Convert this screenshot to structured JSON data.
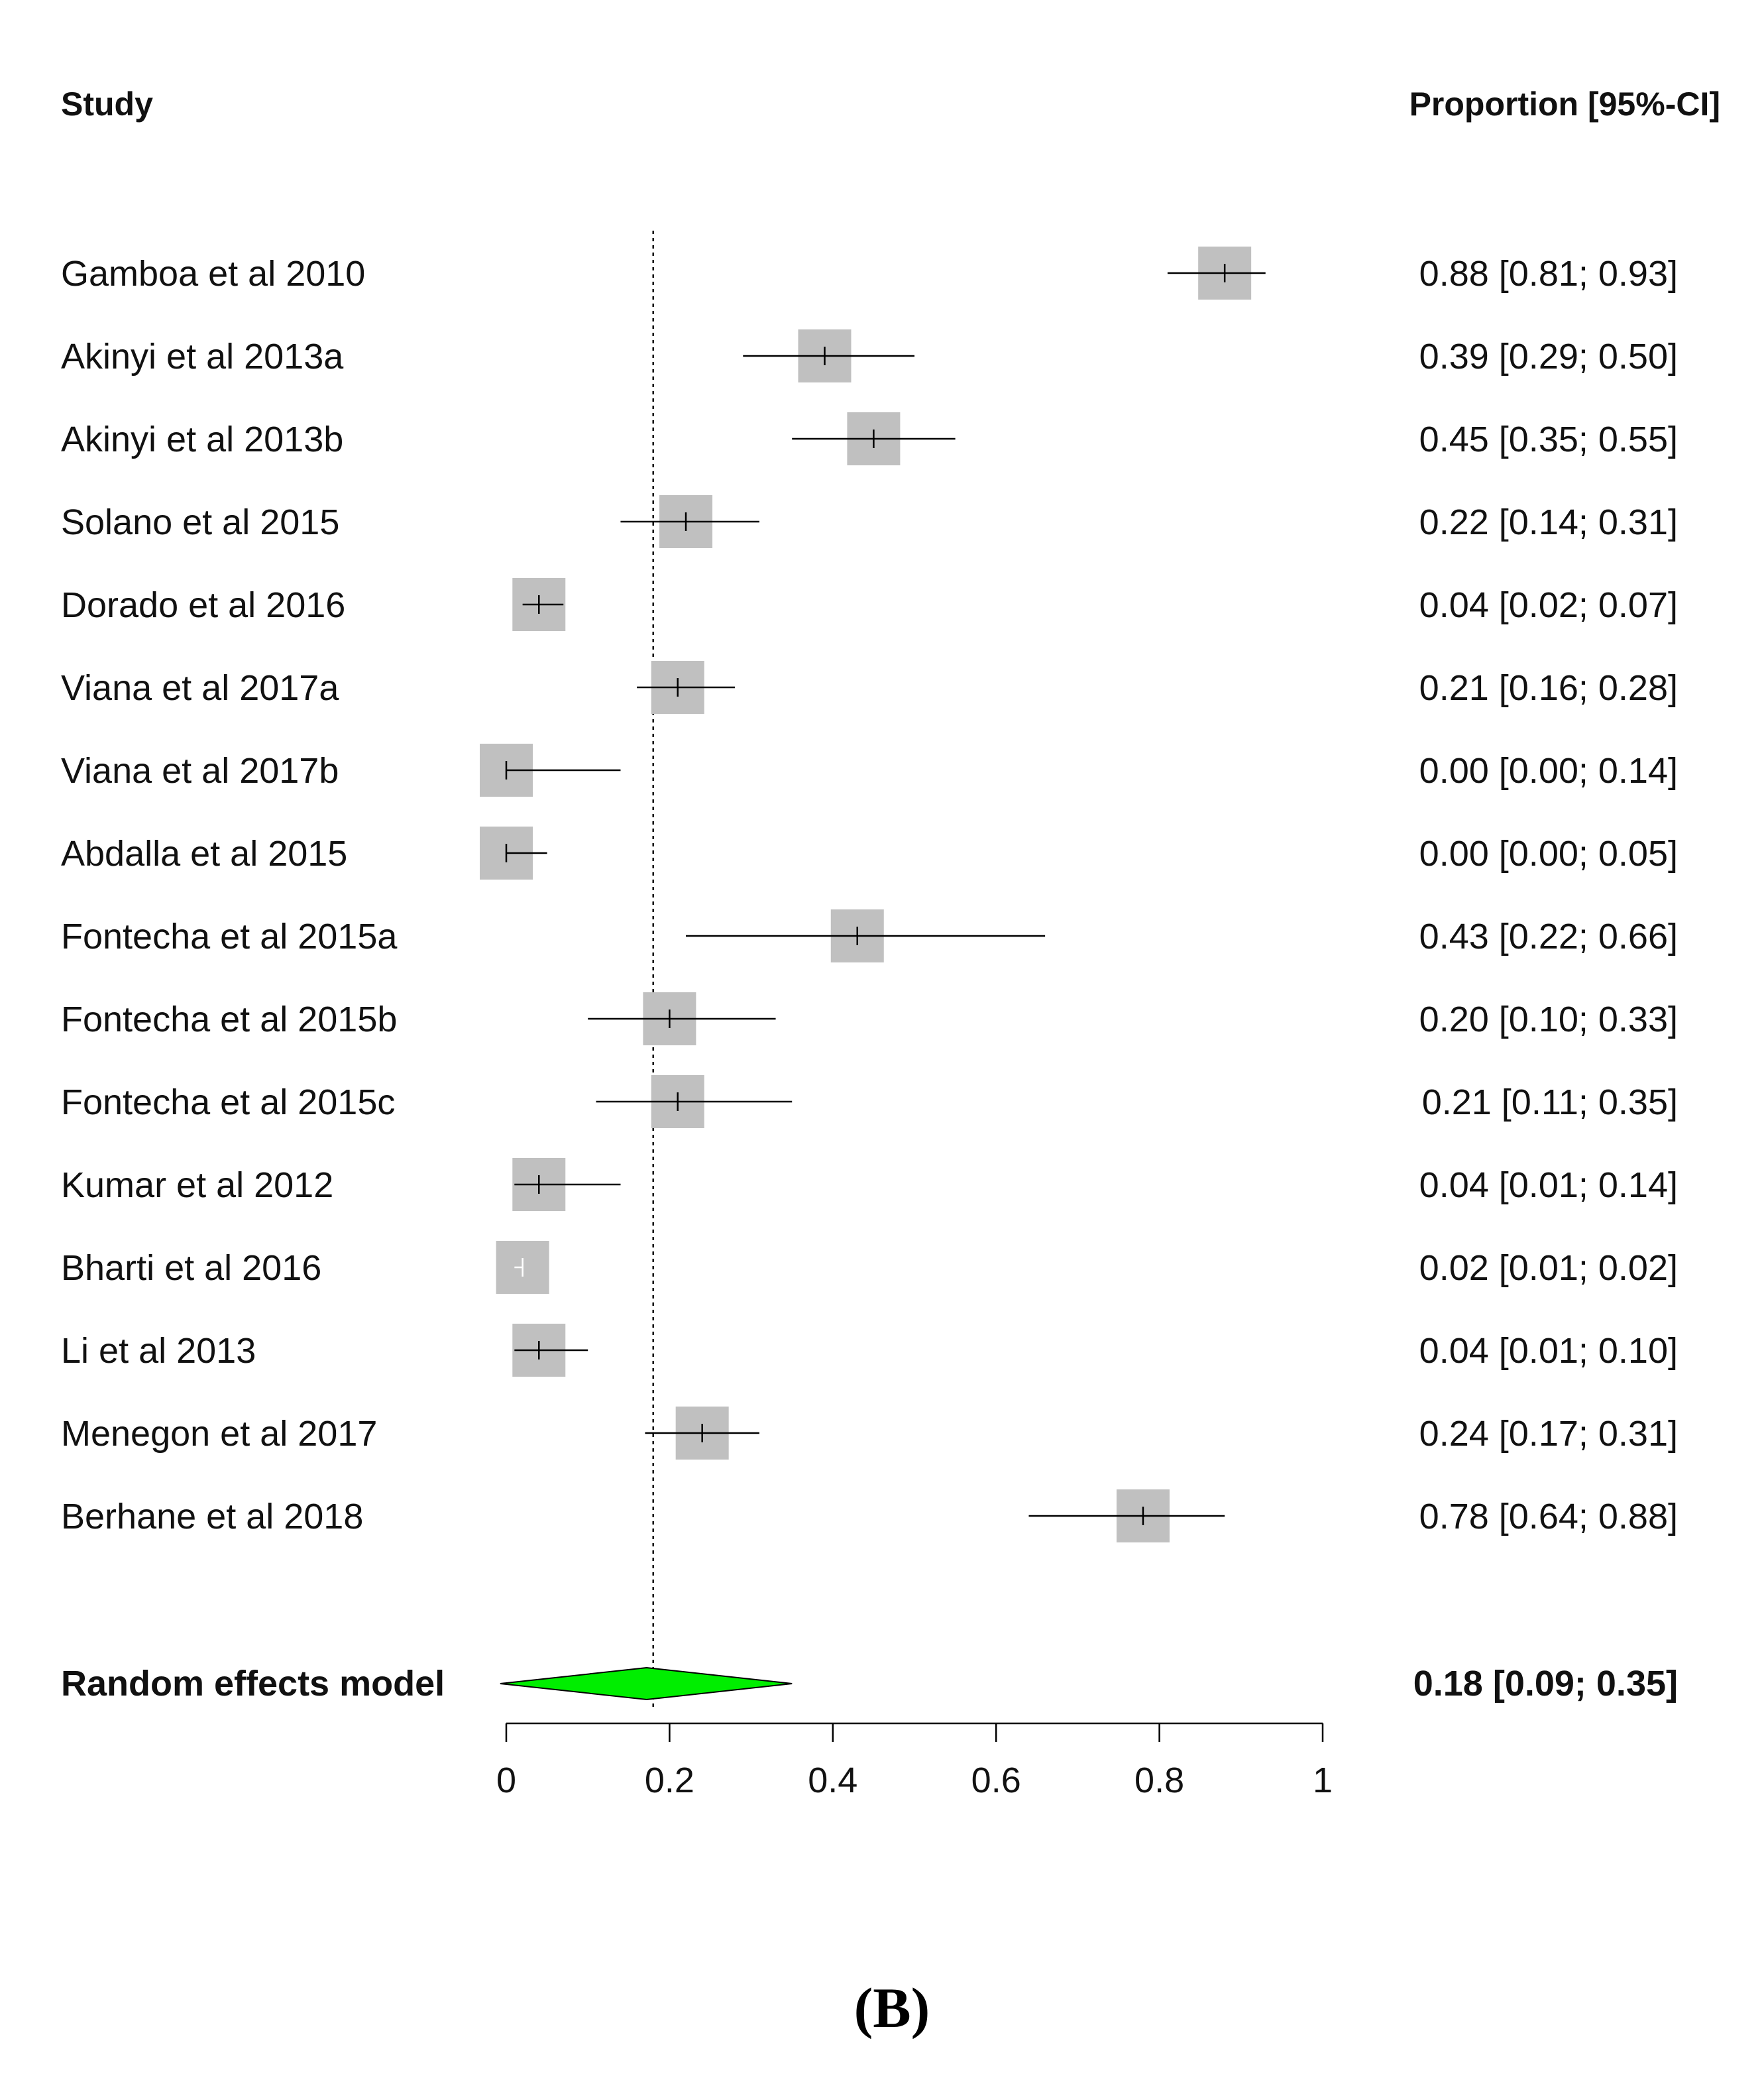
{
  "chart_data": {
    "type": "forest",
    "columns": {
      "left_header": "Study",
      "right_header": "Proportion [95%-CI]"
    },
    "studies": [
      {
        "label": "Gamboa et al 2010",
        "estimate": 0.88,
        "ci_low": 0.81,
        "ci_high": 0.93,
        "ci_text": "0.88 [0.81; 0.93]"
      },
      {
        "label": "Akinyi et al 2013a",
        "estimate": 0.39,
        "ci_low": 0.29,
        "ci_high": 0.5,
        "ci_text": "0.39 [0.29; 0.50]"
      },
      {
        "label": "Akinyi et al 2013b",
        "estimate": 0.45,
        "ci_low": 0.35,
        "ci_high": 0.55,
        "ci_text": "0.45 [0.35; 0.55]"
      },
      {
        "label": "Solano et al 2015",
        "estimate": 0.22,
        "ci_low": 0.14,
        "ci_high": 0.31,
        "ci_text": "0.22 [0.14; 0.31]"
      },
      {
        "label": "Dorado et al 2016",
        "estimate": 0.04,
        "ci_low": 0.02,
        "ci_high": 0.07,
        "ci_text": "0.04 [0.02; 0.07]"
      },
      {
        "label": "Viana et al 2017a",
        "estimate": 0.21,
        "ci_low": 0.16,
        "ci_high": 0.28,
        "ci_text": "0.21 [0.16; 0.28]"
      },
      {
        "label": "Viana et al 2017b",
        "estimate": 0.0,
        "ci_low": 0.0,
        "ci_high": 0.14,
        "ci_text": "0.00 [0.00; 0.14]"
      },
      {
        "label": "Abdalla et al 2015",
        "estimate": 0.0,
        "ci_low": 0.0,
        "ci_high": 0.05,
        "ci_text": "0.00 [0.00; 0.05]"
      },
      {
        "label": "Fontecha et al 2015a",
        "estimate": 0.43,
        "ci_low": 0.22,
        "ci_high": 0.66,
        "ci_text": "0.43 [0.22; 0.66]"
      },
      {
        "label": "Fontecha et al 2015b",
        "estimate": 0.2,
        "ci_low": 0.1,
        "ci_high": 0.33,
        "ci_text": "0.20 [0.10; 0.33]"
      },
      {
        "label": "Fontecha et al 2015c",
        "estimate": 0.21,
        "ci_low": 0.11,
        "ci_high": 0.35,
        "ci_text": "0.21 [0.11; 0.35]"
      },
      {
        "label": "Kumar et al 2012",
        "estimate": 0.04,
        "ci_low": 0.01,
        "ci_high": 0.14,
        "ci_text": "0.04 [0.01; 0.14]"
      },
      {
        "label": "Bharti et al 2016",
        "estimate": 0.02,
        "ci_low": 0.01,
        "ci_high": 0.02,
        "ci_text": "0.02 [0.01; 0.02]"
      },
      {
        "label": "Li et al 2013",
        "estimate": 0.04,
        "ci_low": 0.01,
        "ci_high": 0.1,
        "ci_text": "0.04 [0.01; 0.10]"
      },
      {
        "label": "Menegon et al 2017",
        "estimate": 0.24,
        "ci_low": 0.17,
        "ci_high": 0.31,
        "ci_text": "0.24 [0.17; 0.31]"
      },
      {
        "label": "Berhane et al 2018",
        "estimate": 0.78,
        "ci_low": 0.64,
        "ci_high": 0.88,
        "ci_text": "0.78 [0.64; 0.88]"
      }
    ],
    "summary": {
      "label": "Random effects model",
      "estimate": 0.18,
      "ci_low": 0.09,
      "ci_high": 0.35,
      "ci_text": "0.18 [0.09; 0.35]"
    },
    "reference_line": 0.18,
    "x_axis": {
      "min": 0,
      "max": 1,
      "ticks": [
        0,
        0.2,
        0.4,
        0.6,
        0.8,
        1
      ],
      "tick_labels": [
        "0",
        "0.2",
        "0.4",
        "0.6",
        "0.8",
        "1"
      ]
    },
    "colors": {
      "box": "#c0c0c0",
      "diamond": "#00ee00",
      "line": "#000000"
    }
  },
  "caption": "(B)"
}
